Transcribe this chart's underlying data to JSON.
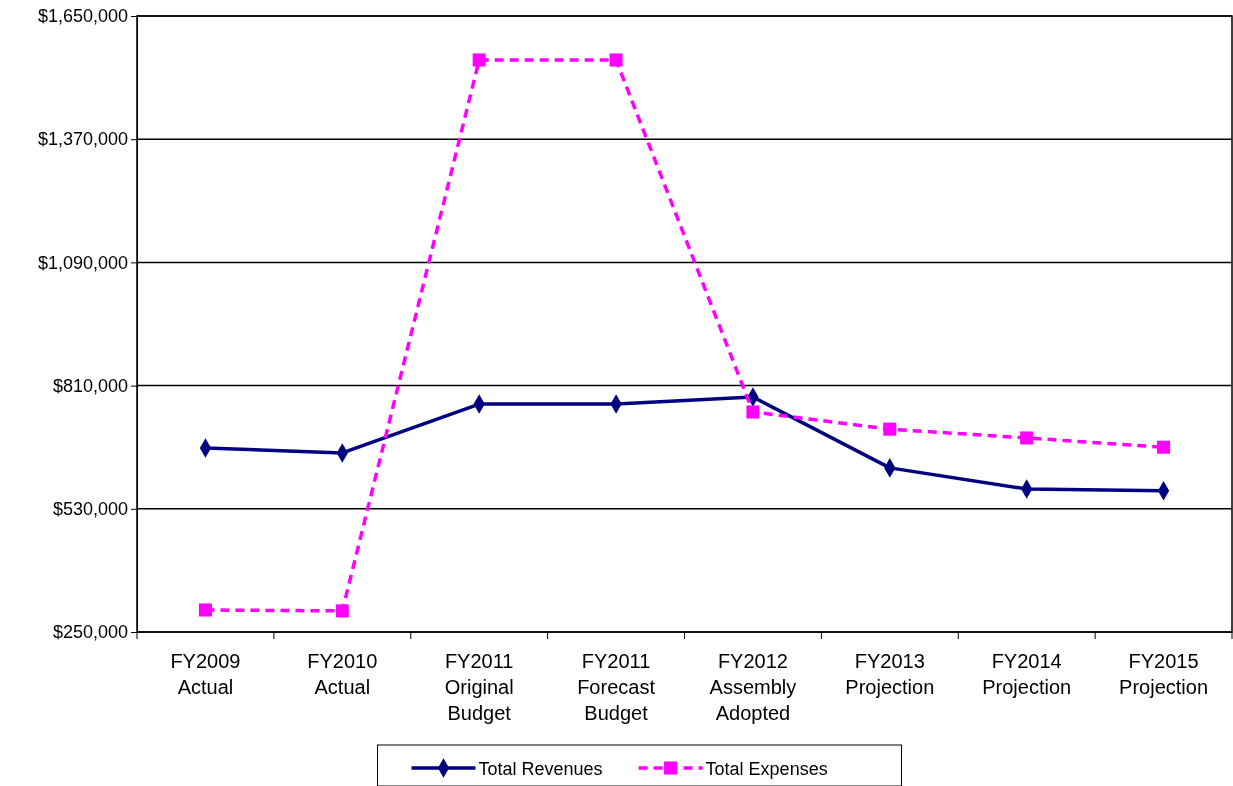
{
  "chart_data": {
    "type": "line",
    "categories": [
      "FY2009 Actual",
      "FY2010 Actual",
      "FY2011 Original Budget",
      "FY2011 Forecast Budget",
      "FY2012 Assembly Adopted",
      "FY2013 Projection",
      "FY2014 Projection",
      "FY2015 Projection"
    ],
    "series": [
      {
        "name": "Total Revenues",
        "color": "#000080",
        "marker": "diamond",
        "line_style": "solid",
        "values": [
          668000,
          657000,
          768000,
          768000,
          784000,
          623000,
          575000,
          571000
        ]
      },
      {
        "name": "Total Expenses",
        "color": "#ff00ff",
        "marker": "square",
        "line_style": "dashed",
        "values": [
          300000,
          298000,
          1550000,
          1550000,
          750000,
          711000,
          691000,
          670000
        ]
      }
    ],
    "ylim": [
      250000,
      1650000
    ],
    "yticks": [
      {
        "value": 250000,
        "label": "$250,000"
      },
      {
        "value": 530000,
        "label": "$530,000"
      },
      {
        "value": 810000,
        "label": "$810,000"
      },
      {
        "value": 1090000,
        "label": "$1,090,000"
      },
      {
        "value": 1370000,
        "label": "$1,370,000"
      },
      {
        "value": 1650000,
        "label": "$1,650,000"
      }
    ],
    "grid": "y",
    "legend": "bottom"
  }
}
